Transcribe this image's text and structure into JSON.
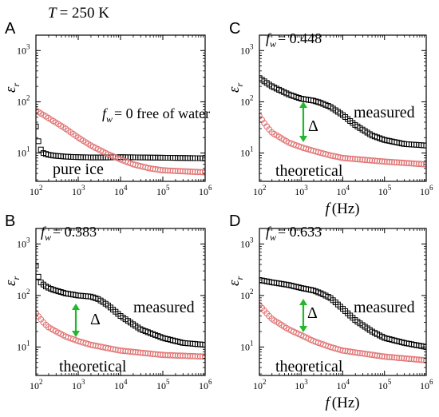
{
  "figure": {
    "title_prefix": "T",
    "title_value": "= 250 K"
  },
  "chart_data": [
    {
      "type": "scatter",
      "panel": "A",
      "condition": {
        "var": "f",
        "sub": "w",
        "text": "= 0 free of water"
      },
      "ylabel": {
        "var": "ε",
        "sub": "r"
      },
      "xlabel": null,
      "xscale": "log",
      "yscale": "log",
      "xlim": [
        100,
        1000000
      ],
      "ylim": [
        2.8,
        2000
      ],
      "xticks": [
        100,
        1000,
        10000,
        100000,
        1000000
      ],
      "xticklabels": [
        [
          "10",
          "2"
        ],
        [
          "10",
          "3"
        ],
        [
          "10",
          "4"
        ],
        [
          "10",
          "5"
        ],
        [
          "10",
          "6"
        ]
      ],
      "yticks": [
        10,
        100,
        1000
      ],
      "yticklabels": [
        [
          "10",
          "1"
        ],
        [
          "10",
          "2"
        ],
        [
          "10",
          "3"
        ]
      ],
      "annotations": [
        {
          "text": "pure ice",
          "color": "#c8102e"
        }
      ],
      "series": [
        {
          "marker": "square",
          "color": "#000000",
          "x": [
            100,
            110,
            120,
            135,
            150,
            200,
            300,
            500,
            1000,
            2000,
            5000,
            10000,
            100000,
            1000000
          ],
          "y": [
            33,
            20,
            14,
            11,
            10,
            9.2,
            8.8,
            8.5,
            8.3,
            8.2,
            8.2,
            8.3,
            8.1,
            7.9
          ]
        },
        {
          "marker": "circle",
          "color": "#e07070",
          "x": [
            100,
            200,
            500,
            1000,
            2000,
            5000,
            10000,
            20000,
            50000,
            100000,
            1000000
          ],
          "y": [
            68,
            48,
            30,
            20,
            14,
            9.5,
            7.5,
            6,
            5,
            4.6,
            4.2
          ]
        }
      ]
    },
    {
      "type": "scatter",
      "panel": "C",
      "condition": {
        "var": "f",
        "sub": "w",
        "text": "= 0.448"
      },
      "ylabel": {
        "var": "ε",
        "sub": "r"
      },
      "xlabel": {
        "var": "f",
        "unit": "(Hz)"
      },
      "xscale": "log",
      "yscale": "log",
      "xlim": [
        100,
        1000000
      ],
      "ylim": [
        2.8,
        2000
      ],
      "xticks": [
        100,
        1000,
        10000,
        100000,
        1000000
      ],
      "xticklabels": [
        [
          "10",
          "2"
        ],
        [
          "10",
          "3"
        ],
        [
          "10",
          "4"
        ],
        [
          "10",
          "5"
        ],
        [
          "10",
          "6"
        ]
      ],
      "yticks": [
        10,
        100,
        1000
      ],
      "yticklabels": [
        [
          "10",
          "1"
        ],
        [
          "10",
          "2"
        ],
        [
          "10",
          "3"
        ]
      ],
      "annotations": [
        {
          "text": "measured",
          "color": "#000000"
        },
        {
          "text": "Δ",
          "color": "#000000"
        },
        {
          "text": "theoretical",
          "color": "#c8102e"
        }
      ],
      "series": [
        {
          "marker": "square",
          "color": "#000000",
          "x": [
            100,
            200,
            500,
            1000,
            2000,
            3000,
            5000,
            10000,
            20000,
            50000,
            100000,
            300000,
            1000000
          ],
          "y": [
            290,
            200,
            140,
            115,
            105,
            95,
            80,
            55,
            35,
            22,
            18,
            15,
            14
          ]
        },
        {
          "marker": "circle",
          "color": "#e07070",
          "x": [
            100,
            150,
            200,
            500,
            1000,
            2000,
            5000,
            10000,
            100000,
            1000000
          ],
          "y": [
            52,
            33,
            25,
            16,
            13,
            11,
            9,
            8,
            6.8,
            6
          ]
        }
      ]
    },
    {
      "type": "scatter",
      "panel": "B",
      "condition": {
        "var": "f",
        "sub": "w",
        "text": "= 0.383"
      },
      "ylabel": {
        "var": "ε",
        "sub": "r"
      },
      "xlabel": null,
      "xscale": "log",
      "yscale": "log",
      "xlim": [
        100,
        1000000
      ],
      "ylim": [
        2.8,
        2000
      ],
      "xticks": [
        100,
        1000,
        10000,
        100000,
        1000000
      ],
      "xticklabels": [
        [
          "10",
          "2"
        ],
        [
          "10",
          "3"
        ],
        [
          "10",
          "4"
        ],
        [
          "10",
          "5"
        ],
        [
          "10",
          "6"
        ]
      ],
      "yticks": [
        10,
        100,
        1000
      ],
      "yticklabels": [
        [
          "10",
          "1"
        ],
        [
          "10",
          "2"
        ],
        [
          "10",
          "3"
        ]
      ],
      "annotations": [
        {
          "text": "measured",
          "color": "#000000"
        },
        {
          "text": "Δ",
          "color": "#000000"
        },
        {
          "text": "theoretical",
          "color": "#c8102e"
        }
      ],
      "series": [
        {
          "marker": "square",
          "color": "#000000",
          "x": [
            100,
            110,
            130,
            170,
            250,
            500,
            1000,
            2000,
            3000,
            5000,
            10000,
            30000,
            100000,
            300000,
            1000000
          ],
          "y": [
            380,
            250,
            180,
            150,
            130,
            110,
            100,
            95,
            85,
            65,
            40,
            22,
            15,
            12,
            11
          ]
        },
        {
          "marker": "circle",
          "color": "#e07070",
          "x": [
            100,
            150,
            200,
            500,
            1000,
            2000,
            5000,
            10000,
            100000,
            1000000
          ],
          "y": [
            45,
            30,
            24,
            16,
            13,
            11,
            9.5,
            8.5,
            7,
            6.5
          ]
        }
      ]
    },
    {
      "type": "scatter",
      "panel": "D",
      "condition": {
        "var": "f",
        "sub": "w",
        "text": "= 0.633"
      },
      "ylabel": {
        "var": "ε",
        "sub": "r"
      },
      "xlabel": {
        "var": "f",
        "unit": "(Hz)"
      },
      "xscale": "log",
      "yscale": "log",
      "xlim": [
        100,
        1000000
      ],
      "ylim": [
        2.8,
        2000
      ],
      "xticks": [
        100,
        1000,
        10000,
        100000,
        1000000
      ],
      "xticklabels": [
        [
          "10",
          "2"
        ],
        [
          "10",
          "3"
        ],
        [
          "10",
          "4"
        ],
        [
          "10",
          "5"
        ],
        [
          "10",
          "6"
        ]
      ],
      "yticks": [
        10,
        100,
        1000
      ],
      "yticklabels": [
        [
          "10",
          "1"
        ],
        [
          "10",
          "2"
        ],
        [
          "10",
          "3"
        ]
      ],
      "annotations": [
        {
          "text": "measured",
          "color": "#000000"
        },
        {
          "text": "Δ",
          "color": "#000000"
        },
        {
          "text": "theoretical",
          "color": "#c8102e"
        }
      ],
      "series": [
        {
          "marker": "square",
          "color": "#000000",
          "x": [
            100,
            200,
            500,
            1000,
            2000,
            3000,
            5000,
            10000,
            20000,
            50000,
            100000,
            300000,
            1000000
          ],
          "y": [
            200,
            180,
            160,
            140,
            125,
            110,
            90,
            55,
            33,
            20,
            15,
            12,
            10
          ]
        },
        {
          "marker": "circle",
          "color": "#e07070",
          "x": [
            100,
            150,
            200,
            500,
            1000,
            2000,
            5000,
            10000,
            100000,
            1000000
          ],
          "y": [
            65,
            45,
            35,
            22,
            17,
            13,
            10,
            8.5,
            6.5,
            5.5
          ]
        }
      ]
    }
  ]
}
